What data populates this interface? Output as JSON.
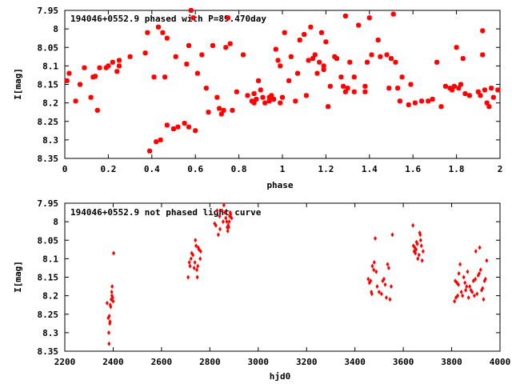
{
  "chart_data": [
    {
      "type": "scatter",
      "title": "194046+0552.9 phased with P=89.470day",
      "xlabel": "phase",
      "ylabel": "I[mag]",
      "xlim": [
        0,
        2
      ],
      "ylim": [
        8.35,
        7.95
      ],
      "y_inverted": true,
      "xticks": [
        "0",
        "0.2",
        "0.4",
        "0.6",
        "0.8",
        "1",
        "1.2",
        "1.4",
        "1.6",
        "1.8",
        "2"
      ],
      "xtick_values": [
        0,
        0.2,
        0.4,
        0.6,
        0.8,
        1.0,
        1.2,
        1.4,
        1.6,
        1.8,
        2.0
      ],
      "yticks": [
        "7.95",
        "8",
        "8.05",
        "8.1",
        "8.15",
        "8.2",
        "8.25",
        "8.3",
        "8.35"
      ],
      "ytick_values": [
        7.95,
        8.0,
        8.05,
        8.1,
        8.15,
        8.2,
        8.25,
        8.3,
        8.35
      ],
      "marker_color": "#ff0000",
      "marker": "cross",
      "grid": false,
      "points": [
        [
          0.01,
          8.14
        ],
        [
          0.02,
          8.12
        ],
        [
          0.05,
          8.195
        ],
        [
          0.07,
          8.15
        ],
        [
          0.09,
          8.105
        ],
        [
          0.12,
          8.185
        ],
        [
          0.13,
          8.13
        ],
        [
          0.14,
          8.128
        ],
        [
          0.15,
          8.22
        ],
        [
          0.16,
          8.105
        ],
        [
          0.19,
          8.105
        ],
        [
          0.2,
          8.1
        ],
        [
          0.22,
          8.09
        ],
        [
          0.24,
          8.115
        ],
        [
          0.25,
          8.085
        ],
        [
          0.25,
          8.1
        ],
        [
          0.3,
          8.075
        ],
        [
          0.37,
          8.065
        ],
        [
          0.38,
          8.01
        ],
        [
          0.39,
          8.33
        ],
        [
          0.41,
          8.13
        ],
        [
          0.42,
          8.305
        ],
        [
          0.43,
          7.995
        ],
        [
          0.44,
          8.3
        ],
        [
          0.45,
          8.01
        ],
        [
          0.46,
          8.13
        ],
        [
          0.47,
          8.025
        ],
        [
          0.47,
          8.26
        ],
        [
          0.5,
          8.27
        ],
        [
          0.51,
          8.075
        ],
        [
          0.52,
          8.265
        ],
        [
          0.55,
          8.255
        ],
        [
          0.56,
          8.095
        ],
        [
          0.57,
          8.045
        ],
        [
          0.57,
          8.265
        ],
        [
          0.58,
          7.95
        ],
        [
          0.59,
          7.97
        ],
        [
          0.6,
          8.275
        ],
        [
          0.61,
          8.12
        ],
        [
          0.63,
          8.07
        ],
        [
          0.65,
          8.16
        ],
        [
          0.66,
          8.225
        ],
        [
          0.68,
          8.045
        ],
        [
          0.7,
          8.185
        ],
        [
          0.71,
          8.215
        ],
        [
          0.72,
          8.23
        ],
        [
          0.73,
          8.22
        ],
        [
          0.74,
          8.05
        ],
        [
          0.75,
          7.97
        ],
        [
          0.76,
          8.04
        ],
        [
          0.77,
          8.22
        ],
        [
          0.79,
          8.17
        ],
        [
          0.82,
          8.07
        ],
        [
          0.84,
          8.18
        ],
        [
          0.86,
          8.195
        ],
        [
          0.87,
          8.175
        ],
        [
          0.87,
          8.2
        ],
        [
          0.88,
          8.19
        ],
        [
          0.89,
          8.14
        ],
        [
          0.9,
          8.165
        ],
        [
          0.91,
          8.185
        ],
        [
          0.92,
          8.2
        ],
        [
          0.94,
          8.195
        ],
        [
          0.94,
          8.185
        ],
        [
          0.95,
          8.18
        ],
        [
          0.96,
          8.19
        ],
        [
          0.97,
          8.055
        ],
        [
          0.98,
          8.085
        ],
        [
          0.99,
          8.1
        ],
        [
          0.99,
          8.2
        ],
        [
          1.0,
          8.185
        ],
        [
          1.01,
          8.01
        ],
        [
          1.03,
          8.14
        ],
        [
          1.04,
          8.075
        ],
        [
          1.06,
          8.195
        ],
        [
          1.07,
          8.12
        ],
        [
          1.08,
          8.03
        ],
        [
          1.1,
          8.015
        ],
        [
          1.11,
          8.18
        ],
        [
          1.12,
          8.085
        ],
        [
          1.13,
          7.995
        ],
        [
          1.14,
          8.08
        ],
        [
          1.15,
          8.07
        ],
        [
          1.16,
          8.12
        ],
        [
          1.17,
          8.09
        ],
        [
          1.18,
          8.01
        ],
        [
          1.19,
          8.11
        ],
        [
          1.19,
          8.1
        ],
        [
          1.2,
          8.035
        ],
        [
          1.21,
          8.21
        ],
        [
          1.22,
          8.155
        ],
        [
          1.24,
          8.075
        ],
        [
          1.25,
          8.08
        ],
        [
          1.27,
          8.13
        ],
        [
          1.28,
          8.155
        ],
        [
          1.29,
          8.17
        ],
        [
          1.29,
          7.965
        ],
        [
          1.3,
          8.16
        ],
        [
          1.31,
          8.09
        ],
        [
          1.33,
          8.13
        ],
        [
          1.33,
          8.17
        ],
        [
          1.35,
          7.99
        ],
        [
          1.38,
          8.155
        ],
        [
          1.38,
          8.17
        ],
        [
          1.39,
          8.09
        ],
        [
          1.4,
          7.97
        ],
        [
          1.41,
          8.07
        ],
        [
          1.44,
          8.03
        ],
        [
          1.45,
          8.075
        ],
        [
          1.48,
          8.07
        ],
        [
          1.49,
          8.16
        ],
        [
          1.5,
          8.08
        ],
        [
          1.51,
          7.96
        ],
        [
          1.52,
          8.09
        ],
        [
          1.53,
          8.16
        ],
        [
          1.54,
          8.195
        ],
        [
          1.55,
          8.13
        ],
        [
          1.58,
          8.205
        ],
        [
          1.59,
          8.15
        ],
        [
          1.61,
          8.2
        ],
        [
          1.64,
          8.195
        ],
        [
          1.67,
          8.195
        ],
        [
          1.69,
          8.19
        ],
        [
          1.71,
          8.09
        ],
        [
          1.73,
          8.21
        ],
        [
          1.75,
          8.155
        ],
        [
          1.77,
          8.16
        ],
        [
          1.78,
          8.165
        ],
        [
          1.79,
          8.155
        ],
        [
          1.8,
          8.05
        ],
        [
          1.81,
          8.16
        ],
        [
          1.82,
          8.15
        ],
        [
          1.83,
          8.08
        ],
        [
          1.84,
          8.175
        ],
        [
          1.86,
          8.18
        ],
        [
          1.9,
          8.17
        ],
        [
          1.91,
          8.18
        ],
        [
          1.92,
          8.005
        ],
        [
          1.92,
          8.07
        ],
        [
          1.93,
          8.165
        ],
        [
          1.94,
          8.2
        ],
        [
          1.95,
          8.21
        ],
        [
          1.96,
          8.16
        ],
        [
          1.97,
          8.185
        ],
        [
          1.99,
          8.165
        ]
      ]
    },
    {
      "type": "scatter",
      "title": "194046+0552.9 not phased light curve",
      "xlabel": "hjd0",
      "ylabel": "I[mag]",
      "xlim": [
        2200,
        4000
      ],
      "ylim": [
        8.35,
        7.95
      ],
      "y_inverted": true,
      "xticks": [
        "2200",
        "2400",
        "2600",
        "2800",
        "3000",
        "3200",
        "3400",
        "3600",
        "3800",
        "4000"
      ],
      "xtick_values": [
        2200,
        2400,
        2600,
        2800,
        3000,
        3200,
        3400,
        3600,
        3800,
        4000
      ],
      "yticks": [
        "7.95",
        "8",
        "8.05",
        "8.1",
        "8.15",
        "8.2",
        "8.25",
        "8.3",
        "8.35"
      ],
      "ytick_values": [
        7.95,
        8.0,
        8.05,
        8.1,
        8.15,
        8.2,
        8.25,
        8.3,
        8.35
      ],
      "marker_color": "#ff0000",
      "marker": "diamond",
      "grid": false,
      "points": [
        [
          2375,
          8.22
        ],
        [
          2380,
          8.26
        ],
        [
          2382,
          8.3
        ],
        [
          2383,
          8.33
        ],
        [
          2384,
          8.255
        ],
        [
          2386,
          8.275
        ],
        [
          2387,
          8.27
        ],
        [
          2388,
          8.225
        ],
        [
          2390,
          8.23
        ],
        [
          2392,
          8.21
        ],
        [
          2394,
          8.19
        ],
        [
          2395,
          8.2
        ],
        [
          2396,
          8.175
        ],
        [
          2398,
          8.205
        ],
        [
          2400,
          8.215
        ],
        [
          2402,
          8.085
        ],
        [
          2710,
          8.15
        ],
        [
          2715,
          8.11
        ],
        [
          2718,
          8.12
        ],
        [
          2722,
          8.1
        ],
        [
          2725,
          8.085
        ],
        [
          2730,
          8.09
        ],
        [
          2735,
          8.125
        ],
        [
          2738,
          8.11
        ],
        [
          2740,
          8.05
        ],
        [
          2743,
          8.065
        ],
        [
          2746,
          8.13
        ],
        [
          2748,
          8.15
        ],
        [
          2750,
          8.12
        ],
        [
          2752,
          8.07
        ],
        [
          2755,
          8.075
        ],
        [
          2760,
          8.1
        ],
        [
          2762,
          8.08
        ],
        [
          2820,
          8.005
        ],
        [
          2825,
          8.01
        ],
        [
          2830,
          7.97
        ],
        [
          2835,
          8.035
        ],
        [
          2840,
          7.985
        ],
        [
          2842,
          8.02
        ],
        [
          2850,
          7.97
        ],
        [
          2855,
          8.0
        ],
        [
          2858,
          7.955
        ],
        [
          2862,
          7.975
        ],
        [
          2866,
          7.99
        ],
        [
          2870,
          8.0
        ],
        [
          2872,
          8.015
        ],
        [
          2874,
          8.025
        ],
        [
          2876,
          8.01
        ],
        [
          2878,
          8.015
        ],
        [
          2880,
          8.0
        ],
        [
          2882,
          7.985
        ],
        [
          2884,
          7.975
        ],
        [
          2886,
          7.98
        ],
        [
          2890,
          7.99
        ],
        [
          3455,
          8.155
        ],
        [
          3460,
          8.165
        ],
        [
          3465,
          8.16
        ],
        [
          3468,
          8.19
        ],
        [
          3470,
          8.195
        ],
        [
          3472,
          8.12
        ],
        [
          3478,
          8.13
        ],
        [
          3480,
          8.11
        ],
        [
          3484,
          8.045
        ],
        [
          3488,
          8.135
        ],
        [
          3492,
          8.175
        ],
        [
          3500,
          8.19
        ],
        [
          3510,
          8.195
        ],
        [
          3515,
          8.16
        ],
        [
          3520,
          8.155
        ],
        [
          3525,
          8.17
        ],
        [
          3530,
          8.205
        ],
        [
          3535,
          8.115
        ],
        [
          3540,
          8.125
        ],
        [
          3545,
          8.21
        ],
        [
          3550,
          8.175
        ],
        [
          3555,
          8.035
        ],
        [
          3640,
          8.01
        ],
        [
          3642,
          8.065
        ],
        [
          3645,
          8.08
        ],
        [
          3648,
          8.07
        ],
        [
          3650,
          8.085
        ],
        [
          3653,
          8.075
        ],
        [
          3655,
          8.055
        ],
        [
          3658,
          8.06
        ],
        [
          3660,
          8.1
        ],
        [
          3665,
          8.09
        ],
        [
          3668,
          8.03
        ],
        [
          3670,
          8.035
        ],
        [
          3672,
          8.05
        ],
        [
          3675,
          8.065
        ],
        [
          3678,
          8.105
        ],
        [
          3682,
          8.08
        ],
        [
          3812,
          8.215
        ],
        [
          3815,
          8.16
        ],
        [
          3818,
          8.205
        ],
        [
          3822,
          8.165
        ],
        [
          3825,
          8.2
        ],
        [
          3828,
          8.17
        ],
        [
          3830,
          8.14
        ],
        [
          3835,
          8.115
        ],
        [
          3840,
          8.19
        ],
        [
          3845,
          8.2
        ],
        [
          3850,
          8.15
        ],
        [
          3855,
          8.165
        ],
        [
          3858,
          8.185
        ],
        [
          3862,
          8.175
        ],
        [
          3866,
          8.135
        ],
        [
          3870,
          8.205
        ],
        [
          3875,
          8.175
        ],
        [
          3880,
          8.185
        ],
        [
          3885,
          8.19
        ],
        [
          3890,
          8.16
        ],
        [
          3894,
          8.2
        ],
        [
          3898,
          8.155
        ],
        [
          3900,
          8.08
        ],
        [
          3905,
          8.195
        ],
        [
          3910,
          8.145
        ],
        [
          3914,
          8.14
        ],
        [
          3916,
          8.07
        ],
        [
          3920,
          8.13
        ],
        [
          3924,
          8.185
        ],
        [
          3928,
          8.18
        ],
        [
          3932,
          8.21
        ],
        [
          3936,
          8.16
        ],
        [
          3940,
          8.155
        ],
        [
          3945,
          8.105
        ]
      ]
    }
  ]
}
